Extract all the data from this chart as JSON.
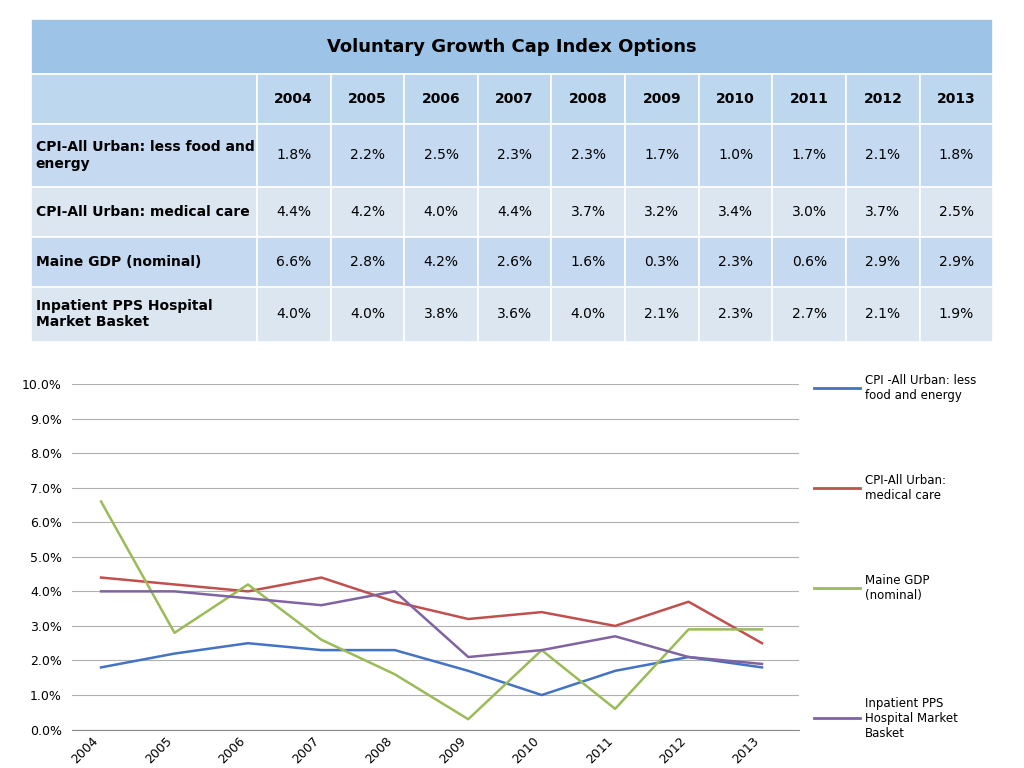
{
  "title": "Voluntary Growth Cap Index Options",
  "years": [
    2004,
    2005,
    2006,
    2007,
    2008,
    2009,
    2010,
    2011,
    2012,
    2013
  ],
  "series": [
    {
      "label": "CPI -All Urban: less\nfood and energy",
      "values": [
        1.8,
        2.2,
        2.5,
        2.3,
        2.3,
        1.7,
        1.0,
        1.7,
        2.1,
        1.8
      ],
      "color": "#4472C4",
      "linewidth": 1.8
    },
    {
      "label": "CPI-All Urban:\nmedical care",
      "values": [
        4.4,
        4.2,
        4.0,
        4.4,
        3.7,
        3.2,
        3.4,
        3.0,
        3.7,
        2.5
      ],
      "color": "#C0504D",
      "linewidth": 1.8
    },
    {
      "label": "Maine GDP\n(nominal)",
      "values": [
        6.6,
        2.8,
        4.2,
        2.6,
        1.6,
        0.3,
        2.3,
        0.6,
        2.9,
        2.9
      ],
      "color": "#9BBB59",
      "linewidth": 1.8
    },
    {
      "label": "Inpatient PPS\nHospital Market\nBasket",
      "values": [
        4.0,
        4.0,
        3.8,
        3.6,
        4.0,
        2.1,
        2.3,
        2.7,
        2.1,
        1.9
      ],
      "color": "#8064A2",
      "linewidth": 1.8
    }
  ],
  "table_rows": [
    {
      "label": "CPI-All Urban: less food and\nenergy",
      "values": [
        "1.8%",
        "2.2%",
        "2.5%",
        "2.3%",
        "2.3%",
        "1.7%",
        "1.0%",
        "1.7%",
        "2.1%",
        "1.8%"
      ],
      "bg": "#C5D9F1"
    },
    {
      "label": "CPI-All Urban: medical care",
      "values": [
        "4.4%",
        "4.2%",
        "4.0%",
        "4.4%",
        "3.7%",
        "3.2%",
        "3.4%",
        "3.0%",
        "3.7%",
        "2.5%"
      ],
      "bg": "#DCE6F1"
    },
    {
      "label": "Maine GDP (nominal)",
      "values": [
        "6.6%",
        "2.8%",
        "4.2%",
        "2.6%",
        "1.6%",
        "0.3%",
        "2.3%",
        "0.6%",
        "2.9%",
        "2.9%"
      ],
      "bg": "#C5D9F1"
    },
    {
      "label": "Inpatient PPS Hospital\nMarket Basket",
      "values": [
        "4.0%",
        "4.0%",
        "3.8%",
        "3.6%",
        "4.0%",
        "2.1%",
        "2.3%",
        "2.7%",
        "2.1%",
        "1.9%"
      ],
      "bg": "#DCE6F1"
    }
  ],
  "title_bg": "#9DC3E6",
  "header_bg": "#BDD7EE",
  "yticks": [
    0.0,
    1.0,
    2.0,
    3.0,
    4.0,
    5.0,
    6.0,
    7.0,
    8.0,
    9.0,
    10.0
  ]
}
